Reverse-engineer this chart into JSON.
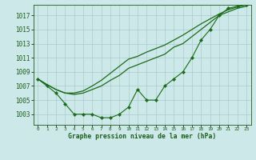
{
  "x": [
    0,
    1,
    2,
    3,
    4,
    5,
    6,
    7,
    8,
    9,
    10,
    11,
    12,
    13,
    14,
    15,
    16,
    17,
    18,
    19,
    20,
    21,
    22,
    23
  ],
  "y_marker": [
    1008,
    1007,
    1006,
    1004.5,
    1003,
    1003,
    1003,
    1002.5,
    1002.5,
    1003,
    1004,
    1006.5,
    1005,
    1005,
    1007,
    1008,
    1009,
    1011,
    1013.5,
    1015,
    1017,
    1018,
    1018.3,
    1018.5
  ],
  "y_smooth1": [
    1008,
    1007.2,
    1006.5,
    1006,
    1005.8,
    1006,
    1006.5,
    1007,
    1007.8,
    1008.5,
    1009.5,
    1010,
    1010.5,
    1011,
    1011.5,
    1012.5,
    1013,
    1014,
    1015,
    1016,
    1017,
    1017.5,
    1018,
    1018.3
  ],
  "y_smooth2": [
    1008,
    1007.2,
    1006.5,
    1006,
    1006,
    1006.3,
    1007,
    1007.8,
    1008.8,
    1009.8,
    1010.8,
    1011.2,
    1011.8,
    1012.3,
    1012.8,
    1013.5,
    1014.2,
    1015,
    1015.8,
    1016.5,
    1017.2,
    1017.8,
    1018.2,
    1018.5
  ],
  "ylim": [
    1001.5,
    1018.5
  ],
  "yticks": [
    1003,
    1005,
    1007,
    1009,
    1011,
    1013,
    1015,
    1017
  ],
  "xlim": [
    -0.5,
    23.5
  ],
  "xlabel": "Graphe pression niveau de la mer (hPa)",
  "bg_color": "#cce8e8",
  "line_color": "#1a6b1a",
  "grid_color": "#aacccc",
  "text_color": "#1a5c1a"
}
